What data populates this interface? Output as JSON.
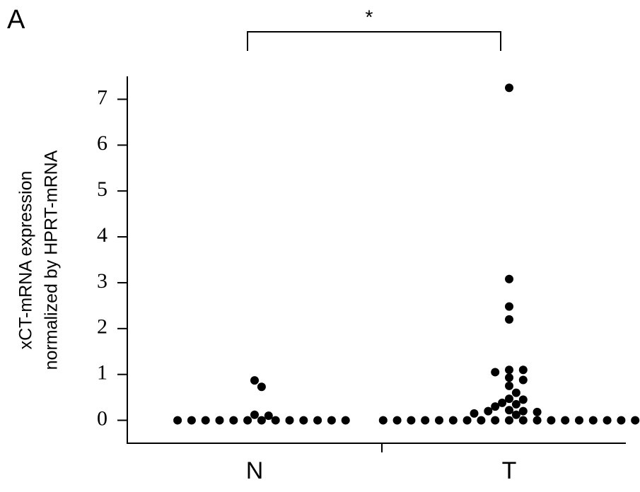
{
  "chart_data": {
    "type": "strip",
    "panel_label": "A",
    "y_label": [
      "xCT-mRNA expression",
      "normalized by HPRT-mRNA"
    ],
    "annotation": "*",
    "categories": [
      "N",
      "T"
    ],
    "series": [
      {
        "name": "N",
        "color": "#000000",
        "values": [
          0.87,
          0.73,
          0.12,
          0.1,
          0,
          0,
          0,
          0,
          0,
          0,
          0,
          0,
          0,
          0,
          0,
          0,
          0
        ]
      },
      {
        "name": "T",
        "color": "#000000",
        "values": [
          7.25,
          3.08,
          2.48,
          2.2,
          1.1,
          1.1,
          1.05,
          0.93,
          0.88,
          0.75,
          0.6,
          0.47,
          0.45,
          0.38,
          0.35,
          0.3,
          0.22,
          0.2,
          0.2,
          0.18,
          0.15,
          0.12,
          0,
          0,
          0,
          0,
          0,
          0,
          0,
          0,
          0,
          0,
          0,
          0,
          0,
          0,
          0,
          0,
          0,
          0,
          0
        ]
      }
    ],
    "ylim": [
      -0.5,
      7.5
    ],
    "yticks": [
      0,
      1,
      2,
      3,
      4,
      5,
      6,
      7
    ]
  }
}
